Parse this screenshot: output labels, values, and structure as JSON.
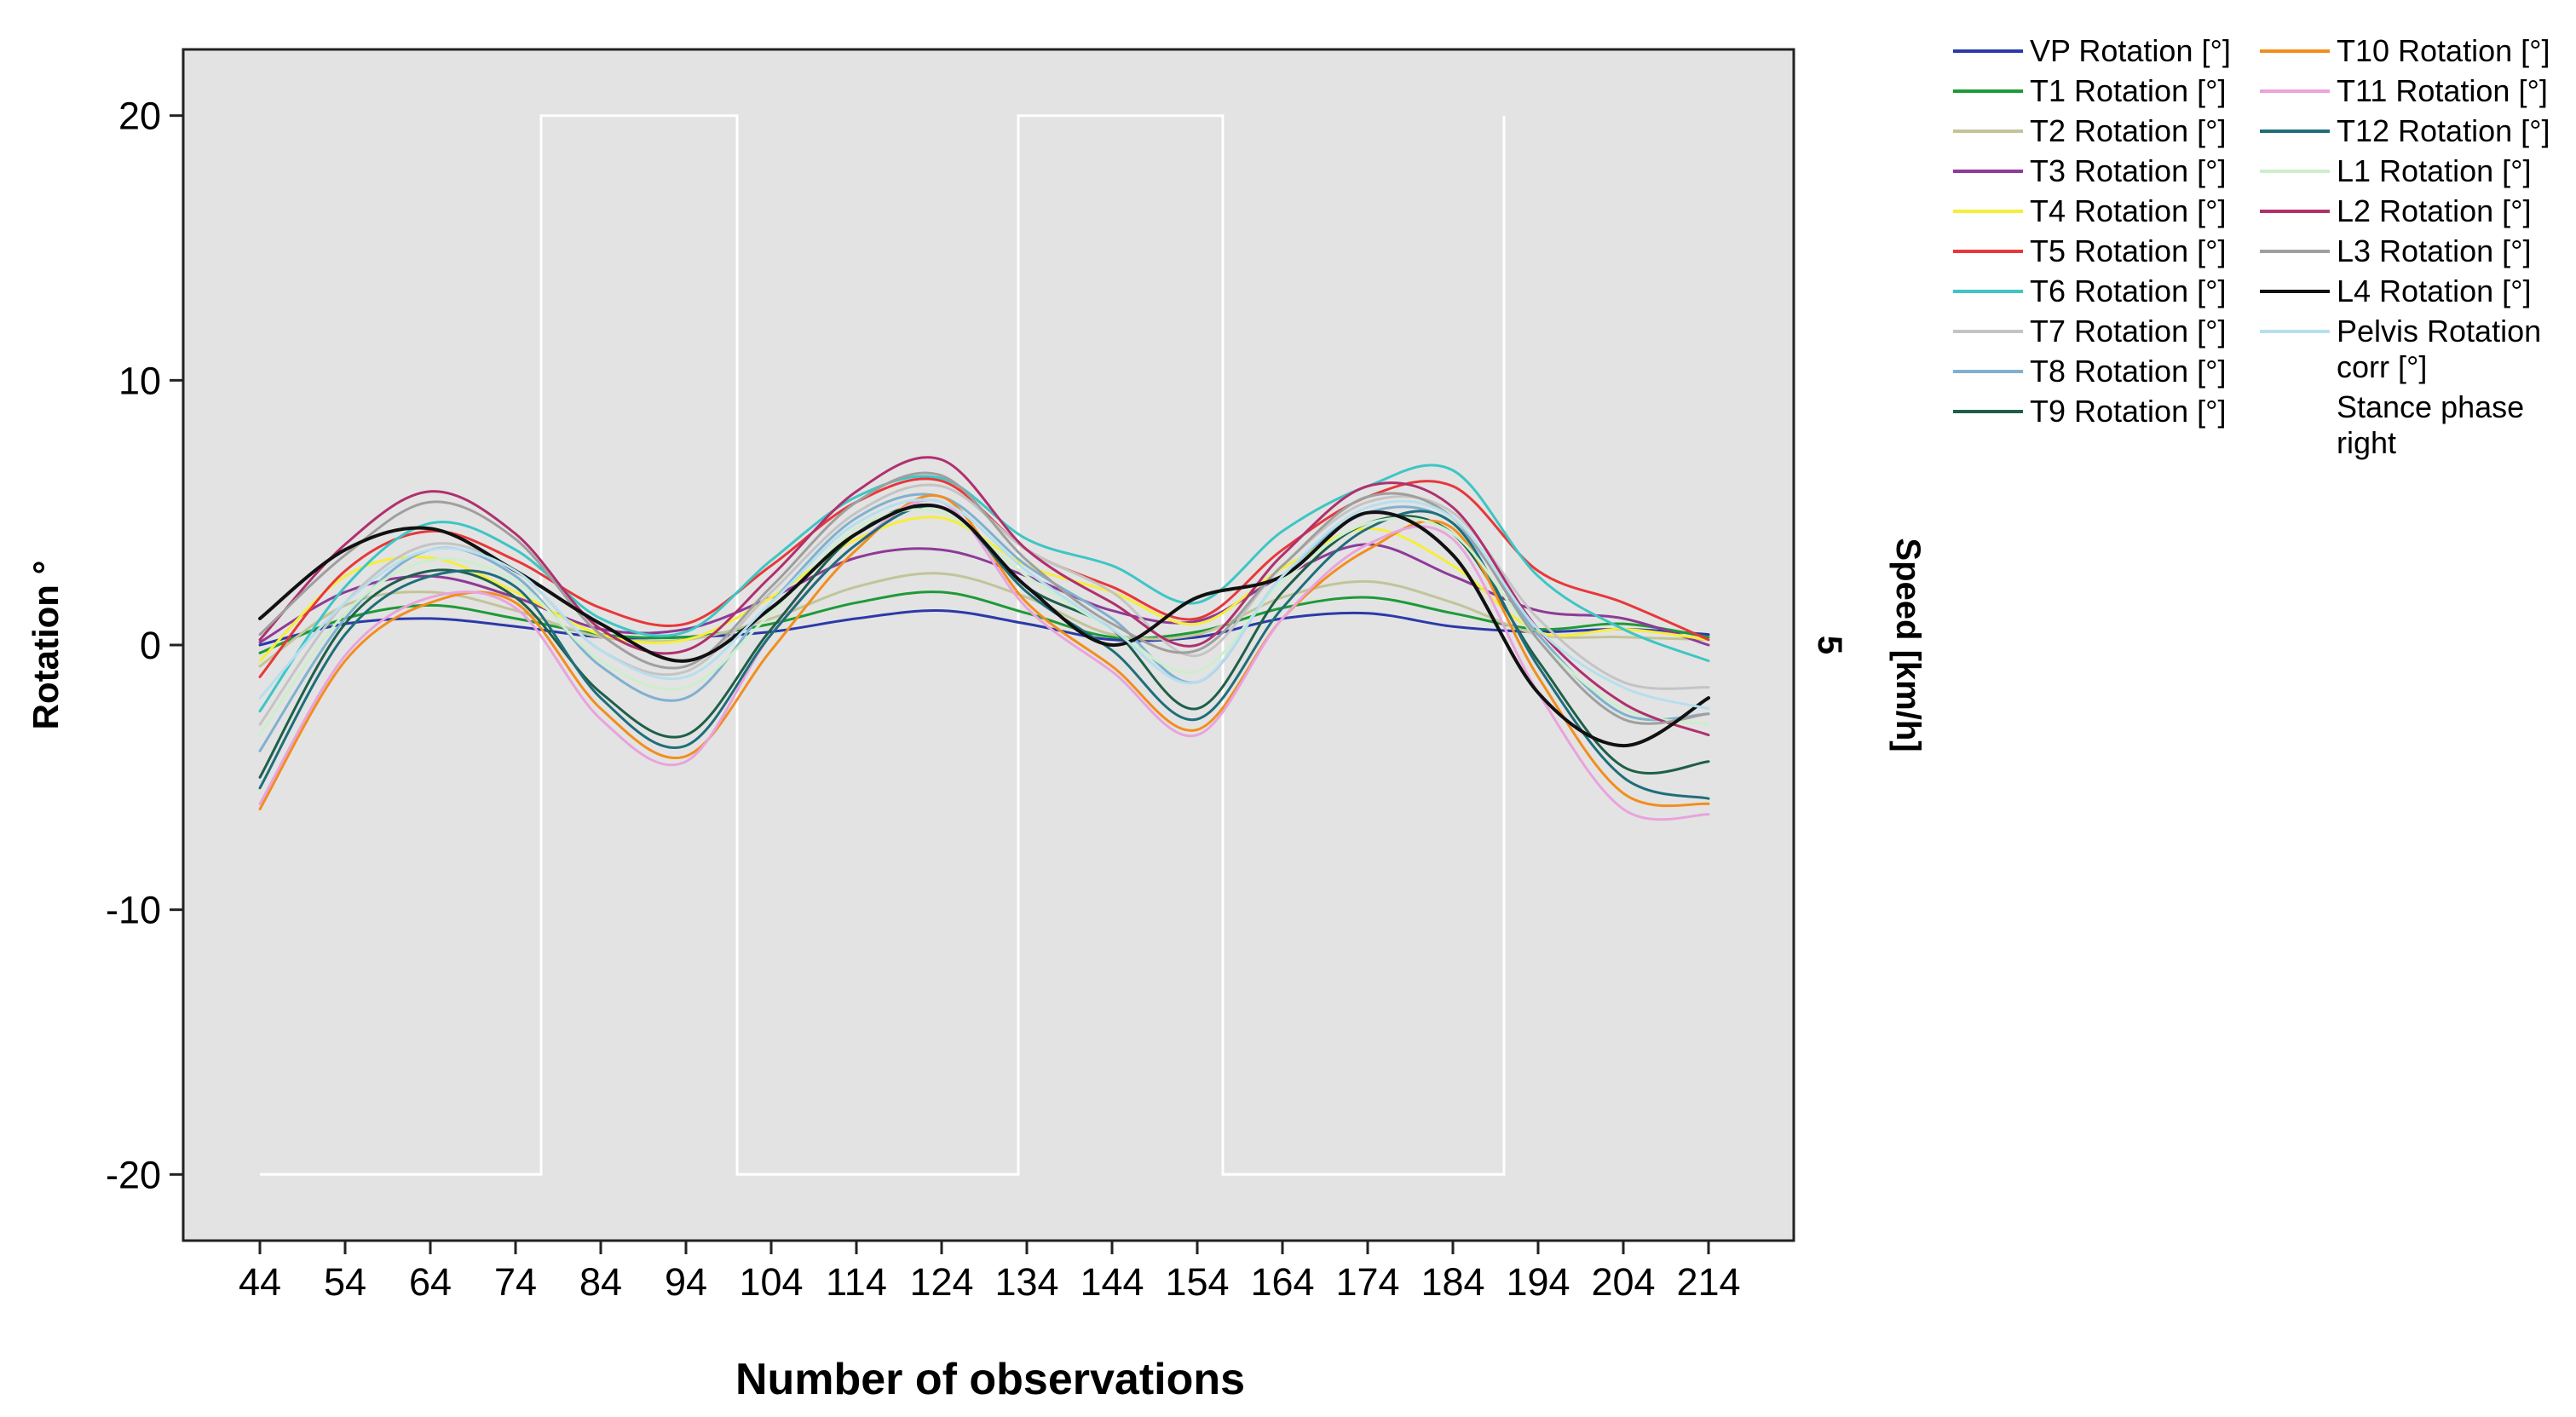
{
  "chart_data": {
    "type": "line",
    "title": "",
    "xlabel": "Number of observations",
    "ylabel": "Rotation °",
    "y2label": "Speed [km/h]",
    "y2tick": "5",
    "xlim": [
      35,
      224
    ],
    "ylim": [
      -22.5,
      22.5
    ],
    "xticks": [
      44,
      54,
      64,
      74,
      84,
      94,
      104,
      114,
      124,
      134,
      144,
      154,
      164,
      174,
      184,
      194,
      204,
      214
    ],
    "yticks": [
      20,
      10,
      0,
      -10,
      -20
    ],
    "grid": false,
    "legend_position": "right",
    "colors": {
      "plot_background": "#e3e3e3",
      "stance_line": "#ffffff"
    },
    "series": [
      {
        "name": "VP Rotation [°]",
        "color": "#2b3aa8",
        "width": 3,
        "x": [
          44,
          54,
          64,
          74,
          84,
          94,
          104,
          114,
          124,
          134,
          144,
          154,
          164,
          174,
          184,
          194,
          204,
          214
        ],
        "y": [
          0,
          0.8,
          1.0,
          0.7,
          0.3,
          0.3,
          0.5,
          1.0,
          1.3,
          0.8,
          0.2,
          0.3,
          1.0,
          1.2,
          0.7,
          0.5,
          0.6,
          0.4
        ]
      },
      {
        "name": "T1 Rotation [°]",
        "color": "#1e9a37",
        "width": 3,
        "x": [
          44,
          54,
          64,
          74,
          84,
          94,
          104,
          114,
          124,
          134,
          144,
          154,
          164,
          174,
          184,
          194,
          204,
          214
        ],
        "y": [
          -0.3,
          1.0,
          1.5,
          1.0,
          0.4,
          0.3,
          0.8,
          1.6,
          2.0,
          1.2,
          0.3,
          0.5,
          1.4,
          1.8,
          1.2,
          0.6,
          0.8,
          0.3
        ]
      },
      {
        "name": "T2 Rotation [°]",
        "color": "#c2c499",
        "width": 3,
        "x": [
          44,
          54,
          64,
          74,
          84,
          94,
          104,
          114,
          124,
          134,
          144,
          154,
          164,
          174,
          184,
          194,
          204,
          214
        ],
        "y": [
          -0.8,
          1.5,
          2.0,
          1.3,
          0.3,
          0.2,
          1.0,
          2.2,
          2.7,
          1.8,
          0.4,
          0.4,
          1.8,
          2.4,
          1.6,
          0.4,
          0.3,
          0.2
        ]
      },
      {
        "name": "T3 Rotation [°]",
        "color": "#8e3a98",
        "width": 3,
        "x": [
          44,
          54,
          64,
          74,
          84,
          94,
          104,
          114,
          124,
          134,
          144,
          154,
          164,
          174,
          184,
          194,
          204,
          214
        ],
        "y": [
          0.1,
          2.0,
          2.6,
          1.8,
          0.6,
          0.6,
          1.8,
          3.3,
          3.6,
          2.6,
          1.3,
          0.9,
          2.6,
          3.8,
          2.6,
          1.3,
          1.0,
          0.0
        ]
      },
      {
        "name": "T4 Rotation [°]",
        "color": "#f5ee3a",
        "width": 3,
        "x": [
          44,
          54,
          64,
          74,
          84,
          94,
          104,
          114,
          124,
          134,
          144,
          154,
          164,
          174,
          184,
          194,
          204,
          214
        ],
        "y": [
          -0.6,
          2.6,
          3.3,
          2.0,
          0.4,
          0.2,
          1.8,
          4.0,
          4.8,
          3.0,
          2.0,
          0.8,
          2.9,
          4.4,
          3.0,
          0.5,
          0.6,
          0.2
        ]
      },
      {
        "name": "T5 Rotation [°]",
        "color": "#e8373a",
        "width": 3,
        "x": [
          44,
          54,
          64,
          74,
          84,
          94,
          104,
          114,
          124,
          134,
          144,
          154,
          164,
          174,
          184,
          194,
          204,
          214
        ],
        "y": [
          -1.2,
          2.8,
          4.3,
          3.2,
          1.4,
          0.8,
          3.0,
          5.4,
          6.2,
          3.6,
          2.2,
          1.0,
          3.6,
          5.6,
          6.0,
          2.8,
          1.6,
          0.2
        ]
      },
      {
        "name": "T6 Rotation [°]",
        "color": "#3dc6c4",
        "width": 3,
        "x": [
          44,
          54,
          64,
          74,
          84,
          94,
          104,
          114,
          124,
          134,
          144,
          154,
          164,
          174,
          184,
          194,
          204,
          214
        ],
        "y": [
          -2.5,
          2.2,
          4.6,
          3.6,
          1.0,
          0.5,
          3.2,
          5.6,
          6.3,
          4.0,
          3.0,
          1.6,
          4.3,
          6.0,
          6.6,
          2.6,
          0.6,
          -0.6
        ]
      },
      {
        "name": "T7 Rotation [°]",
        "color": "#c4c4c4",
        "width": 3,
        "x": [
          44,
          54,
          64,
          74,
          84,
          94,
          104,
          114,
          124,
          134,
          144,
          154,
          164,
          174,
          184,
          194,
          204,
          214
        ],
        "y": [
          -3.0,
          1.6,
          3.8,
          2.8,
          -0.2,
          -1.0,
          2.0,
          5.0,
          6.0,
          3.6,
          2.0,
          -0.4,
          3.0,
          5.4,
          5.0,
          1.0,
          -1.4,
          -1.6
        ]
      },
      {
        "name": "T8 Rotation [°]",
        "color": "#7fb1cf",
        "width": 3,
        "x": [
          44,
          54,
          64,
          74,
          84,
          94,
          104,
          114,
          124,
          134,
          144,
          154,
          164,
          174,
          184,
          194,
          204,
          214
        ],
        "y": [
          -4.0,
          1.0,
          3.6,
          2.6,
          -0.8,
          -2.0,
          1.6,
          4.8,
          5.6,
          3.0,
          1.0,
          -1.4,
          2.6,
          5.0,
          4.6,
          0.4,
          -2.6,
          -2.6
        ]
      },
      {
        "name": "T9 Rotation [°]",
        "color": "#1e5f48",
        "width": 3,
        "x": [
          44,
          54,
          64,
          74,
          84,
          94,
          104,
          114,
          124,
          134,
          144,
          154,
          164,
          174,
          184,
          194,
          204,
          214
        ],
        "y": [
          -5.0,
          0.8,
          2.8,
          1.8,
          -1.8,
          -3.4,
          0.6,
          4.2,
          5.2,
          2.2,
          0.6,
          -2.4,
          2.0,
          4.6,
          4.2,
          -0.6,
          -4.6,
          -4.4
        ]
      },
      {
        "name": "T10 Rotation [°]",
        "color": "#f28e1e",
        "width": 3,
        "x": [
          44,
          54,
          64,
          74,
          84,
          94,
          104,
          114,
          124,
          134,
          144,
          154,
          164,
          174,
          184,
          194,
          204,
          214
        ],
        "y": [
          -6.2,
          -0.6,
          1.6,
          1.6,
          -2.4,
          -4.2,
          -0.2,
          3.6,
          5.6,
          1.6,
          -0.8,
          -3.2,
          1.0,
          3.6,
          4.4,
          -1.2,
          -5.6,
          -6.0
        ]
      },
      {
        "name": "T11 Rotation [°]",
        "color": "#e9a3dd",
        "width": 3,
        "x": [
          44,
          54,
          64,
          74,
          84,
          94,
          104,
          114,
          124,
          134,
          144,
          154,
          164,
          174,
          184,
          194,
          204,
          214
        ],
        "y": [
          -6.0,
          -0.4,
          1.8,
          1.4,
          -2.8,
          -4.4,
          0.4,
          3.8,
          5.4,
          1.4,
          -1.0,
          -3.4,
          1.0,
          3.8,
          4.0,
          -1.8,
          -6.2,
          -6.4
        ]
      },
      {
        "name": "T12 Rotation [°]",
        "color": "#1f6e7a",
        "width": 3,
        "x": [
          44,
          54,
          64,
          74,
          84,
          94,
          104,
          114,
          124,
          134,
          144,
          154,
          164,
          174,
          184,
          194,
          204,
          214
        ],
        "y": [
          -5.4,
          0.4,
          2.6,
          2.2,
          -2.0,
          -3.8,
          0.4,
          3.8,
          5.2,
          2.0,
          -0.2,
          -2.8,
          1.4,
          4.4,
          4.6,
          -0.8,
          -5.0,
          -5.8
        ]
      },
      {
        "name": "L1 Rotation [°]",
        "color": "#cdeecb",
        "width": 3,
        "x": [
          44,
          54,
          64,
          74,
          84,
          94,
          104,
          114,
          124,
          134,
          144,
          154,
          164,
          174,
          184,
          194,
          204,
          214
        ],
        "y": [
          -3.4,
          1.2,
          3.2,
          2.4,
          -0.6,
          -1.6,
          1.2,
          4.4,
          5.0,
          2.6,
          0.6,
          -1.0,
          2.4,
          4.6,
          4.2,
          0.2,
          -2.4,
          -3.0
        ]
      },
      {
        "name": "L2 Rotation [°]",
        "color": "#b0306e",
        "width": 3,
        "x": [
          44,
          54,
          64,
          74,
          84,
          94,
          104,
          114,
          124,
          134,
          144,
          154,
          164,
          174,
          184,
          194,
          204,
          214
        ],
        "y": [
          0.2,
          3.8,
          5.8,
          4.2,
          0.6,
          -0.2,
          2.6,
          5.8,
          7.0,
          3.6,
          1.6,
          0.0,
          3.4,
          6.0,
          5.2,
          0.6,
          -2.2,
          -3.4
        ]
      },
      {
        "name": "L3 Rotation [°]",
        "color": "#9f9f9f",
        "width": 3,
        "x": [
          44,
          54,
          64,
          74,
          84,
          94,
          104,
          114,
          124,
          134,
          144,
          154,
          164,
          174,
          184,
          194,
          204,
          214
        ],
        "y": [
          0.4,
          3.4,
          5.4,
          4.0,
          0.4,
          -0.8,
          2.2,
          5.4,
          6.4,
          3.2,
          0.8,
          -0.2,
          3.0,
          5.6,
          4.8,
          0.2,
          -2.8,
          -2.6
        ]
      },
      {
        "name": "L4 Rotation [°]",
        "color": "#111111",
        "width": 4,
        "x": [
          44,
          54,
          64,
          74,
          84,
          94,
          104,
          114,
          124,
          134,
          144,
          154,
          164,
          174,
          184,
          194,
          204,
          214
        ],
        "y": [
          1.0,
          3.6,
          4.4,
          2.8,
          0.8,
          -0.6,
          1.4,
          4.2,
          5.2,
          2.2,
          0.0,
          1.8,
          2.6,
          5.0,
          3.4,
          -1.8,
          -3.8,
          -2.0
        ]
      },
      {
        "name": "Pelvis Rotation corr [°]",
        "color": "#b6dfee",
        "width": 3,
        "x": [
          44,
          54,
          64,
          74,
          84,
          94,
          104,
          114,
          124,
          134,
          144,
          154,
          164,
          174,
          184,
          194,
          204,
          214
        ],
        "y": [
          -2.0,
          1.6,
          3.6,
          2.8,
          -0.2,
          -1.2,
          1.6,
          4.6,
          5.4,
          2.8,
          0.6,
          -1.4,
          2.6,
          5.2,
          4.8,
          0.6,
          -1.6,
          -2.4
        ]
      }
    ],
    "stance_phase": {
      "name": "Stance phase right",
      "x": [
        44,
        77,
        77,
        100,
        100,
        133,
        133,
        157,
        157,
        190,
        190
      ],
      "y": [
        -20,
        -20,
        20,
        20,
        -20,
        -20,
        20,
        20,
        -20,
        -20,
        20
      ]
    }
  }
}
